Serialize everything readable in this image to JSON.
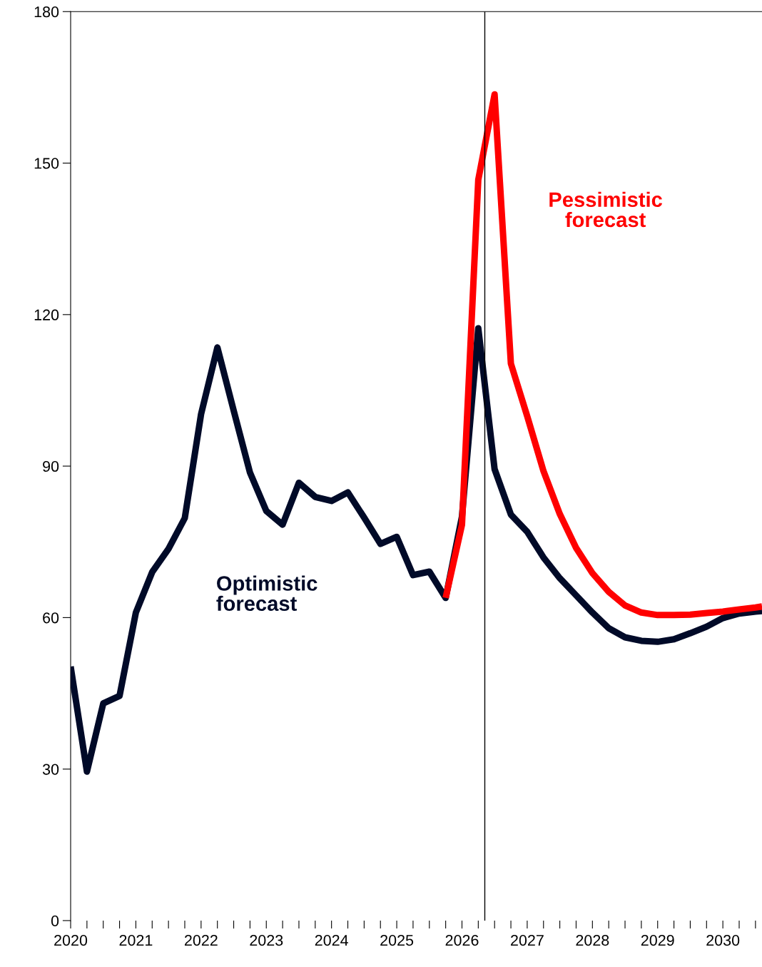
{
  "chart_data": {
    "type": "line",
    "xlim": [
      2020,
      2030.6
    ],
    "ylim": [
      0,
      180
    ],
    "xticks": [
      2020,
      2021,
      2022,
      2023,
      2024,
      2025,
      2026,
      2027,
      2028,
      2029,
      2030
    ],
    "yticks": [
      0,
      30,
      60,
      90,
      120,
      150,
      180
    ],
    "grid": false,
    "legend": false,
    "marker": "none",
    "line_style": "solid",
    "ref_lines": [
      {
        "axis": "x",
        "value": 2026.35,
        "color": "#000000"
      }
    ],
    "series": [
      {
        "name": "Pessimistic forecast",
        "color": "#ff0000",
        "x": [
          2025.75,
          2026.0,
          2026.25,
          2026.5,
          2026.75,
          2027.0,
          2027.25,
          2027.5,
          2027.75,
          2028.0,
          2028.25,
          2028.5,
          2028.75,
          2029.0,
          2029.25,
          2029.5,
          2029.75,
          2030.0,
          2030.25,
          2030.5,
          2030.6
        ],
        "values": [
          63.9,
          78.4,
          146.7,
          163.6,
          110.3,
          99.9,
          89,
          80.5,
          73.8,
          68.8,
          65.1,
          62.4,
          61,
          60.5,
          60.5,
          60.6,
          60.9,
          61.2,
          61.6,
          62,
          62.2
        ]
      },
      {
        "name": "Optimistic forecast",
        "color": "#000a28",
        "x": [
          2020.0,
          2020.25,
          2020.5,
          2020.75,
          2021.0,
          2021.25,
          2021.5,
          2021.75,
          2022.0,
          2022.25,
          2022.5,
          2022.75,
          2023.0,
          2023.25,
          2023.5,
          2023.75,
          2024.0,
          2024.25,
          2024.5,
          2024.75,
          2025.0,
          2025.25,
          2025.5,
          2025.75,
          2026.0,
          2026.25,
          2026.5,
          2026.75,
          2027.0,
          2027.25,
          2027.5,
          2027.75,
          2028.0,
          2028.25,
          2028.5,
          2028.75,
          2029.0,
          2029.25,
          2029.5,
          2029.75,
          2030.0,
          2030.25,
          2030.5,
          2030.6
        ],
        "values": [
          50.3,
          29.5,
          43,
          44.5,
          61,
          69,
          73.6,
          79.7,
          100.3,
          113.5,
          101,
          88.7,
          81.1,
          78.4,
          86.7,
          83.9,
          83.1,
          84.8,
          79.8,
          74.6,
          76,
          68.4,
          69.1,
          63.9,
          80,
          117.3,
          89.4,
          80.4,
          77,
          71.9,
          67.8,
          64.4,
          61,
          57.9,
          56.1,
          55.4,
          55.2,
          55.7,
          56.9,
          58.2,
          59.9,
          60.8,
          61.2,
          61.3
        ]
      }
    ]
  }
}
